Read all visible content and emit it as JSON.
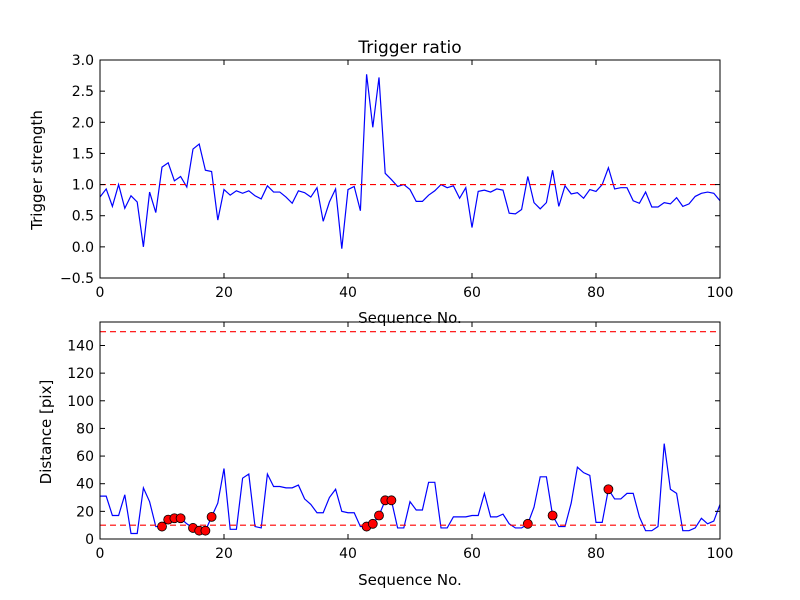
{
  "chart_data": [
    {
      "type": "line",
      "title": "Trigger ratio",
      "xlabel": "Sequence No.",
      "ylabel": "Trigger strength",
      "xlim": [
        0,
        100
      ],
      "ylim": [
        -0.5,
        3.0
      ],
      "xticks": [
        "0",
        "20",
        "40",
        "60",
        "80",
        "100"
      ],
      "yticks": [
        "−0.5",
        "0.0",
        "0.5",
        "1.0",
        "1.5",
        "2.0",
        "2.5",
        "3.0"
      ],
      "grid": false,
      "series": [
        {
          "color": "#0000ff",
          "x": [
            0,
            1,
            2,
            3,
            4,
            5,
            6,
            7,
            8,
            9,
            10,
            11,
            12,
            13,
            14,
            15,
            16,
            17,
            18,
            19,
            20,
            21,
            22,
            23,
            24,
            25,
            26,
            27,
            28,
            29,
            30,
            31,
            32,
            33,
            34,
            35,
            36,
            37,
            38,
            39,
            40,
            41,
            42,
            43,
            44,
            45,
            46,
            47,
            48,
            49,
            50,
            51,
            52,
            53,
            54,
            55,
            56,
            57,
            58,
            59,
            60,
            61,
            62,
            63,
            64,
            65,
            66,
            67,
            68,
            69,
            70,
            71,
            72,
            73,
            74,
            75,
            76,
            77,
            78,
            79,
            80,
            81,
            82,
            83,
            84,
            85,
            86,
            87,
            88,
            89,
            90,
            91,
            92,
            93,
            94,
            95,
            96,
            97,
            98,
            99,
            100
          ],
          "values": [
            0.8,
            0.93,
            0.65,
            1.0,
            0.62,
            0.82,
            0.72,
            0.0,
            0.88,
            0.55,
            1.28,
            1.35,
            1.06,
            1.13,
            0.96,
            1.57,
            1.65,
            1.23,
            1.21,
            0.43,
            0.92,
            0.83,
            0.9,
            0.86,
            0.9,
            0.82,
            0.77,
            0.98,
            0.88,
            0.88,
            0.8,
            0.7,
            0.9,
            0.87,
            0.8,
            0.95,
            0.41,
            0.72,
            0.93,
            -0.03,
            0.92,
            0.97,
            0.58,
            2.77,
            1.92,
            2.72,
            1.18,
            1.08,
            0.97,
            1.0,
            0.92,
            0.73,
            0.73,
            0.83,
            0.9,
            1.0,
            0.95,
            0.98,
            0.78,
            0.95,
            0.31,
            0.89,
            0.91,
            0.88,
            0.93,
            0.91,
            0.54,
            0.53,
            0.6,
            1.13,
            0.71,
            0.61,
            0.71,
            1.23,
            0.65,
            0.98,
            0.85,
            0.87,
            0.78,
            0.92,
            0.89,
            1.0,
            1.27,
            0.93,
            0.95,
            0.95,
            0.74,
            0.7,
            0.88,
            0.64,
            0.64,
            0.71,
            0.69,
            0.79,
            0.65,
            0.69,
            0.81,
            0.86,
            0.88,
            0.86,
            0.74
          ]
        },
        {
          "color": "#ff0000",
          "style": "dashed",
          "x": [
            0,
            100
          ],
          "values": [
            1.0,
            1.0
          ]
        }
      ]
    },
    {
      "type": "line",
      "title": "",
      "xlabel": "Sequence No.",
      "ylabel": "Distance [pix]",
      "xlim": [
        0,
        100
      ],
      "ylim": [
        0,
        157
      ],
      "xticks": [
        "0",
        "20",
        "40",
        "60",
        "80",
        "100"
      ],
      "yticks": [
        "0",
        "20",
        "40",
        "60",
        "80",
        "100",
        "120",
        "140"
      ],
      "grid": false,
      "series": [
        {
          "color": "#0000ff",
          "x": [
            0,
            1,
            2,
            3,
            4,
            5,
            6,
            7,
            8,
            9,
            10,
            11,
            12,
            13,
            14,
            15,
            16,
            17,
            18,
            19,
            20,
            21,
            22,
            23,
            24,
            25,
            26,
            27,
            28,
            29,
            30,
            31,
            32,
            33,
            34,
            35,
            36,
            37,
            38,
            39,
            40,
            41,
            42,
            43,
            44,
            45,
            46,
            47,
            48,
            49,
            50,
            51,
            52,
            53,
            54,
            55,
            56,
            57,
            58,
            59,
            60,
            61,
            62,
            63,
            64,
            65,
            66,
            67,
            68,
            69,
            70,
            71,
            72,
            73,
            74,
            75,
            76,
            77,
            78,
            79,
            80,
            81,
            82,
            83,
            84,
            85,
            86,
            87,
            88,
            89,
            90,
            91,
            92,
            93,
            94,
            95,
            96,
            97,
            98,
            99,
            100
          ],
          "values": [
            31,
            31,
            17,
            17,
            32,
            4,
            4,
            37,
            27,
            9,
            9,
            14,
            15,
            15,
            11,
            8,
            6,
            6,
            16,
            26,
            51,
            7,
            7,
            44,
            47,
            9,
            8,
            47,
            38,
            38,
            37,
            37,
            39,
            29,
            25,
            19,
            19,
            30,
            36,
            20,
            19,
            19,
            9,
            9,
            11,
            17,
            28,
            28,
            8,
            8,
            27,
            21,
            21,
            41,
            41,
            8,
            8,
            16,
            16,
            16,
            17,
            17,
            33,
            16,
            16,
            18,
            11,
            8,
            8,
            11,
            23,
            45,
            45,
            17,
            9,
            9,
            26,
            52,
            48,
            46,
            12,
            12,
            36,
            29,
            29,
            33,
            33,
            16,
            6,
            6,
            9,
            69,
            36,
            33,
            6,
            6,
            8,
            15,
            11,
            13,
            25
          ]
        },
        {
          "color": "#ff0000",
          "style": "markers",
          "x": [
            10,
            11,
            12,
            13,
            15,
            16,
            17,
            18,
            43,
            44,
            45,
            46,
            47,
            69,
            73,
            82
          ],
          "values": [
            9,
            14,
            15,
            15,
            8,
            6,
            6,
            16,
            9,
            11,
            17,
            28,
            28,
            11,
            17,
            36
          ]
        },
        {
          "color": "#ff0000",
          "style": "dashed",
          "x": [
            0,
            100
          ],
          "values": [
            10,
            10
          ]
        },
        {
          "color": "#ff0000",
          "style": "dashed",
          "x": [
            0,
            100
          ],
          "values": [
            150,
            150
          ]
        }
      ]
    }
  ]
}
